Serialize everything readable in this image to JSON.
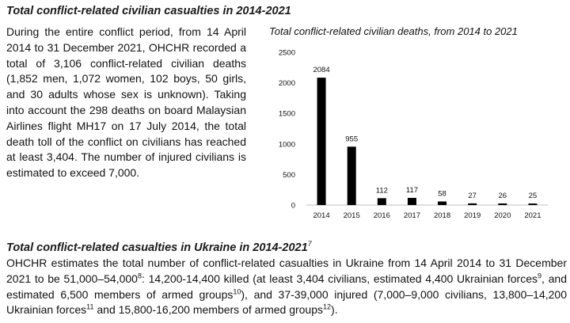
{
  "section1": {
    "heading": "Total conflict-related civilian casualties in 2014-2021",
    "paragraph": "During the entire conflict period, from 14 April 2014 to 31 December 2021, OHCHR recorded a total of 3,106 conflict-related civilian deaths (1,852 men, 1,072 women, 102 boys, 50 girls, and 30 adults whose sex is unknown). Taking into account the 298 deaths on board Malaysian Airlines flight MH17 on 17 July 2014, the total death toll of the conflict on civilians has reached at least 3,404. The number of injured civilians is estimated to exceed 7,000."
  },
  "section2": {
    "heading": "Total conflict-related casualties in Ukraine in 2014-2021",
    "heading_footnote": "7",
    "p_seg1": "OHCHR estimates the total number of conflict-related casualties in Ukraine from 14 April 2014 to 31 December 2021 to be 51,000–54,000",
    "fn8": "8",
    "p_seg2": ": 14,200-14,400 killed (at least 3,404 civilians, estimated 4,400 Ukrainian forces",
    "fn9": "9",
    "p_seg3": ", and estimated 6,500 members of armed groups",
    "fn10": "10",
    "p_seg4": "), and 37-39,000 injured (7,000–9,000 civilians, 13,800–14,200 Ukrainian forces",
    "fn11": "11",
    "p_seg5": " and 15,800-16,200 members of armed groups",
    "fn12": "12",
    "p_seg6": ")."
  },
  "chart_data": {
    "type": "bar",
    "title": "Total conflict-related civilian deaths, from 2014 to 2021",
    "categories": [
      "2014",
      "2015",
      "2016",
      "2017",
      "2018",
      "2019",
      "2020",
      "2021"
    ],
    "values": [
      2084,
      955,
      112,
      117,
      58,
      27,
      26,
      25
    ],
    "ylim": [
      0,
      2500
    ],
    "yticks": [
      "0",
      "500",
      "1000",
      "1500",
      "2000",
      "2500"
    ],
    "ytick_values": [
      0,
      500,
      1000,
      1500,
      2000,
      2500
    ],
    "xlabel": "",
    "ylabel": "",
    "grid": false,
    "bar_color": "#000000"
  }
}
